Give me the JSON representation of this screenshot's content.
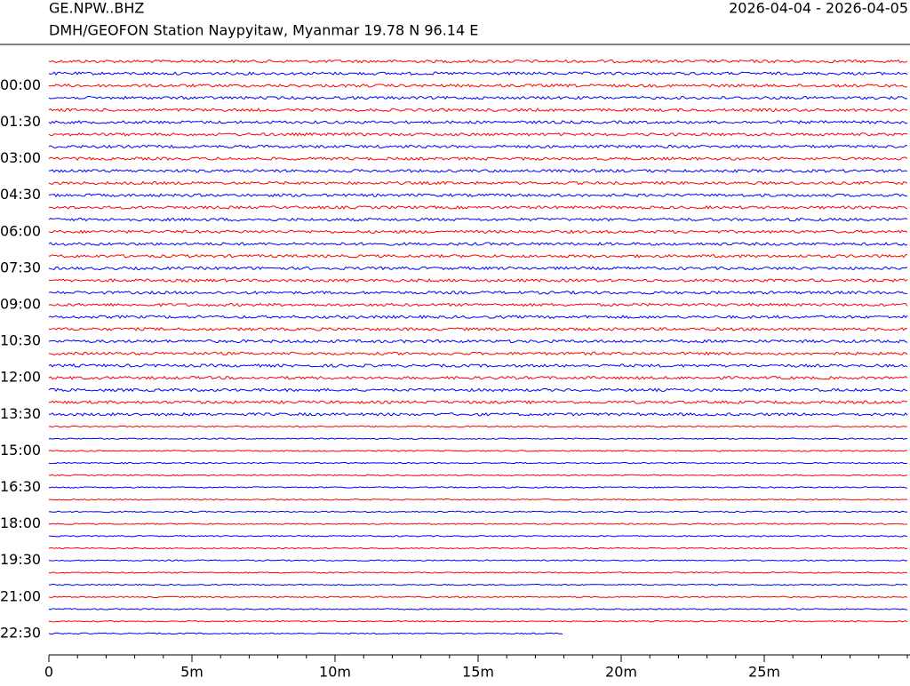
{
  "chart_data": {
    "type": "helicorder",
    "title": "GE.NPW..BHZ",
    "subtitle": "DMH/GEOFON Station Naypyitaw, Myanmar  19.78 N 96.14 E",
    "date_range": "2026-04-04 - 2026-04-05",
    "row_labels": [
      null,
      null,
      "00:00",
      null,
      null,
      "01:30",
      null,
      null,
      "03:00",
      null,
      null,
      "04:30",
      null,
      null,
      "06:00",
      null,
      null,
      "07:30",
      null,
      null,
      "09:00",
      null,
      null,
      "10:30",
      null,
      null,
      "12:00",
      null,
      null,
      "13:30",
      null,
      null,
      "15:00",
      null,
      null,
      "16:30",
      null,
      null,
      "18:00",
      null,
      null,
      "19:30",
      null,
      null,
      "21:00",
      null,
      null,
      "22:30"
    ],
    "trace_colors": [
      "#ff0000",
      "#0000ff"
    ],
    "trace_ends": [
      30,
      30,
      30,
      30,
      30,
      30,
      30,
      30,
      30,
      30,
      30,
      30,
      30,
      30,
      30,
      30,
      30,
      30,
      30,
      30,
      30,
      30,
      30,
      30,
      30,
      30,
      30,
      30,
      30,
      30,
      30,
      30,
      30,
      30,
      30,
      30,
      30,
      30,
      30,
      30,
      30,
      30,
      30,
      30,
      30,
      30,
      30,
      18
    ],
    "xlim": [
      0,
      30
    ],
    "xticks": [
      0,
      {
        "value": 5,
        "label": "5m"
      },
      {
        "value": 10,
        "label": "10m"
      },
      {
        "value": 15,
        "label": "15m"
      },
      {
        "value": 20,
        "label": "20m"
      },
      {
        "value": 25,
        "label": "25m"
      }
    ],
    "minor_tick_interval": 1
  }
}
